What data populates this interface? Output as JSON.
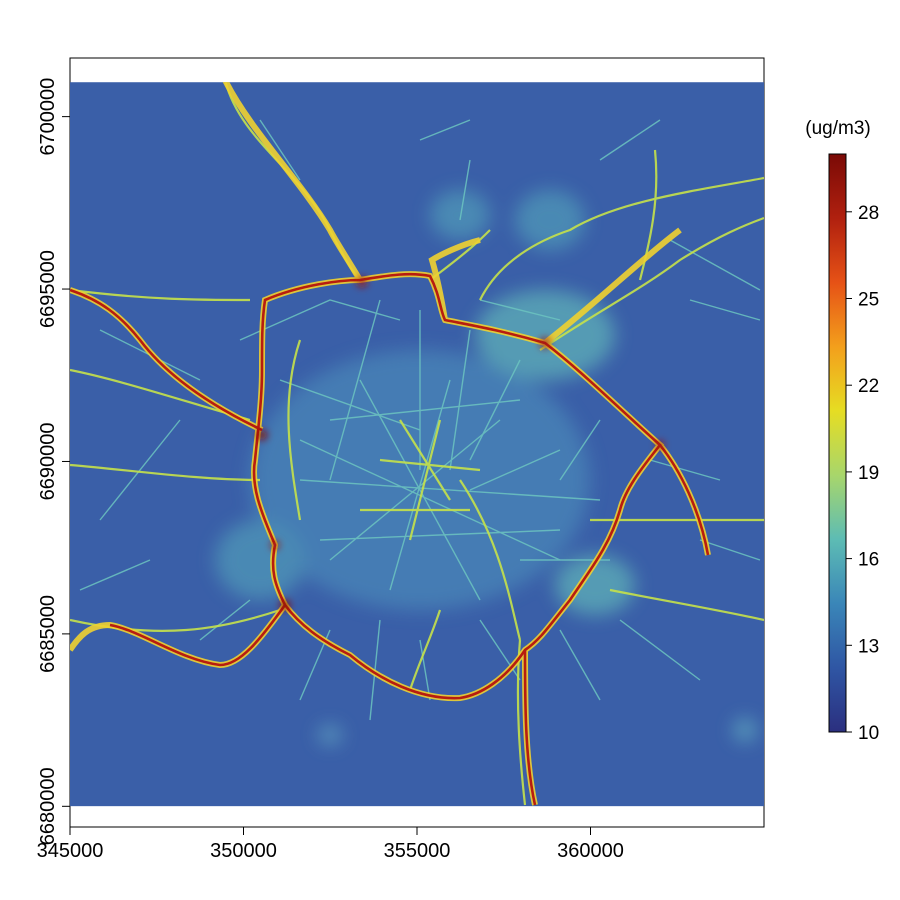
{
  "map": {
    "legend": {
      "title": "(ug/m3)",
      "min": 10,
      "max": 30,
      "ticks": [
        10,
        13,
        16,
        19,
        22,
        25,
        28
      ],
      "colors": [
        "#2b2f7f",
        "#2f56a4",
        "#3a86b8",
        "#5dbcb4",
        "#a8d66b",
        "#e6dd23",
        "#f39f1c",
        "#e65216",
        "#b0200f",
        "#7a0a06"
      ]
    },
    "x_axis": {
      "ticks": [
        345000,
        350000,
        355000,
        360000
      ],
      "tick_labels": [
        "345000",
        "350000",
        "355000",
        "360000"
      ],
      "range": [
        345000,
        365000
      ]
    },
    "y_axis": {
      "ticks": [
        6680000,
        6685000,
        6690000,
        6695000,
        6700000
      ],
      "tick_labels": [
        "6680000",
        "6685000",
        "6690000",
        "6695000",
        "6700000"
      ],
      "range": [
        6679400,
        6701700
      ]
    },
    "data_extent": {
      "x": [
        345000,
        365000
      ],
      "y": [
        6680000,
        6701000
      ]
    },
    "background_color": "#3a5fa8",
    "features": {
      "ring_road": "high NO2 concentration ring road",
      "radial_roads": "major radial roads",
      "city_center": "city centre street network"
    }
  }
}
